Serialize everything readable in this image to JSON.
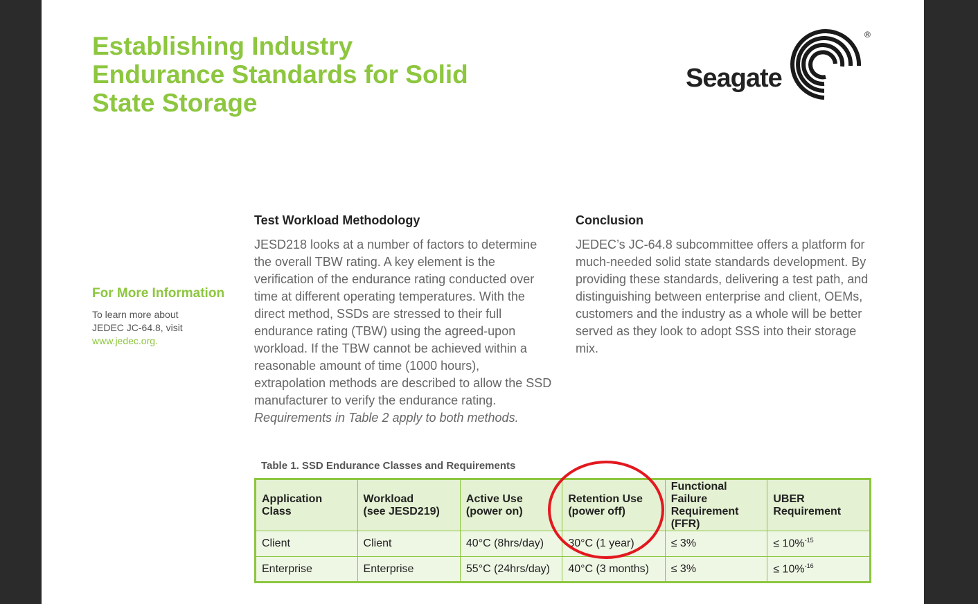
{
  "document": {
    "title_lines": [
      "Establishing Industry",
      "Endurance Standards for Solid",
      "State Storage"
    ],
    "logo": {
      "text": "Seagate",
      "mark": "seagate-swirl-icon",
      "registered": "®"
    }
  },
  "sidebar": {
    "heading": "For More Information",
    "text_lines": [
      "To learn more about",
      "JEDEC JC-64.8, visit"
    ],
    "link": "www.jedec.org."
  },
  "sections": {
    "methodology": {
      "heading": "Test Workload Methodology",
      "body": "JESD218 looks at a number of factors to determine the overall TBW rating. A key element is the verification of the endurance rating conducted over time at different operating temperatures. With the direct method, SSDs are stressed to their full endurance rating (TBW) using the agreed-upon workload. If the TBW cannot be achieved within a reasonable amount of time (1000 hours), extrapolation methods are described to allow the SSD manufacturer to verify the endurance rating.",
      "note": "Requirements in Table 2 apply to both methods."
    },
    "conclusion": {
      "heading": "Conclusion",
      "body": "JEDEC’s JC-64.8 subcommittee offers a platform for much-needed solid state standards development. By providing these standards, delivering a test path, and distinguishing between enterprise and client, OEMs, customers and the industry as a whole will be better served as they look to adopt SSS into their storage mix."
    }
  },
  "table": {
    "caption": "Table 1. SSD Endurance Classes and Requirements",
    "headers": [
      [
        "Application Class"
      ],
      [
        "Workload",
        "(see JESD219)"
      ],
      [
        "Active Use",
        "(power on)"
      ],
      [
        "Retention Use",
        "(power off)"
      ],
      [
        "Functional Failure",
        "Requirement",
        "(FFR)"
      ],
      [
        "UBER",
        "Requirement"
      ]
    ],
    "rows": [
      {
        "application_class": "Client",
        "workload": "Client",
        "active_use": "40°C (8hrs/day)",
        "retention_use": "30°C (1 year)",
        "ffr": "≤ 3%",
        "uber_base": "≤ 10%",
        "uber_exp": "-15"
      },
      {
        "application_class": "Enterprise",
        "workload": "Enterprise",
        "active_use": "55°C (24hrs/day)",
        "retention_use": "40°C (3 months)",
        "ffr": "≤ 3%",
        "uber_base": "≤ 10%",
        "uber_exp": "-16"
      }
    ]
  },
  "colors": {
    "accent_green": "#8dc63f",
    "highlight_red": "#e3181f",
    "table_header_bg": "#e4f1d2",
    "table_row_bg": "#eef6e4"
  }
}
